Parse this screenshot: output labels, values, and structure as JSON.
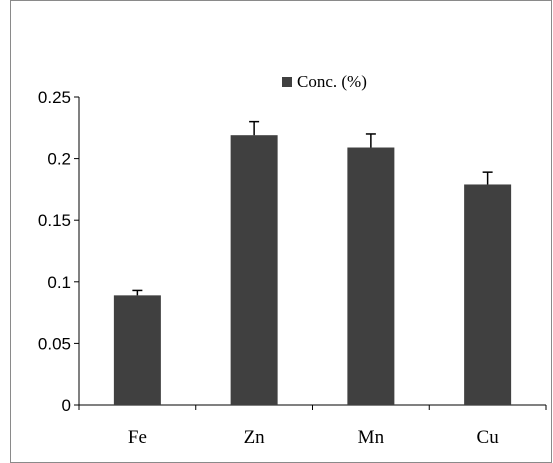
{
  "chart_data": {
    "type": "bar",
    "title": "",
    "xlabel": "",
    "ylabel": "",
    "categories": [
      "Fe",
      "Zn",
      "Mn",
      "Cu"
    ],
    "series": [
      {
        "name": "Conc. (%)",
        "values": [
          0.089,
          0.219,
          0.209,
          0.179
        ],
        "error_plus": [
          0.004,
          0.011,
          0.011,
          0.01
        ],
        "color": "#404040"
      }
    ],
    "ylim": [
      0,
      0.25
    ],
    "yticks": [
      0,
      0.05,
      0.1,
      0.15,
      0.2,
      0.25
    ],
    "ytick_labels": [
      "0",
      "0.05",
      "0.1",
      "0.15",
      "0.2",
      "0.25"
    ],
    "grid": false,
    "legend": {
      "placement": "top-center",
      "label": "Conc. (%)"
    },
    "colors": {
      "bar": "#404040",
      "axis": "#000000",
      "border": "#8a8a8a"
    }
  }
}
